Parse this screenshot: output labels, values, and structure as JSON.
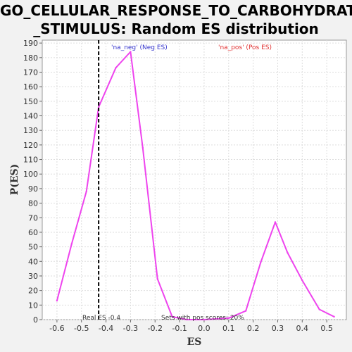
{
  "title_line1": "GO_CELLULAR_RESPONSE_TO_CARBOHYDRATE",
  "title_line2": "_STIMULUS: Random ES distribution",
  "chart_data": {
    "type": "line",
    "xlabel": "ES",
    "ylabel": "P(ES)",
    "xlim": [
      -0.66,
      0.58
    ],
    "ylim": [
      0,
      192
    ],
    "xticks": [
      -0.6,
      -0.5,
      -0.4,
      -0.3,
      -0.2,
      -0.1,
      0.0,
      0.1,
      0.2,
      0.3,
      0.4,
      0.5
    ],
    "yticks": [
      0,
      10,
      20,
      30,
      40,
      50,
      60,
      70,
      80,
      90,
      100,
      110,
      120,
      130,
      140,
      150,
      160,
      170,
      180,
      190
    ],
    "grid": true,
    "series": [
      {
        "color": "#ee44ee",
        "x": [
          -0.6,
          -0.54,
          -0.48,
          -0.43,
          -0.36,
          -0.3,
          -0.25,
          -0.19,
          -0.13,
          -0.07,
          0.0,
          0.1,
          0.17,
          0.23,
          0.29,
          0.34,
          0.4,
          0.47,
          0.53
        ],
        "y": [
          13,
          52,
          88,
          146,
          173,
          184,
          118,
          28,
          2,
          0,
          0,
          1,
          6,
          39,
          67,
          46,
          27,
          7,
          2
        ]
      }
    ],
    "real_es": -0.43,
    "legend_neg": "'na_neg' (Neg ES)",
    "legend_pos": "'na_pos' (Pos ES)",
    "annotation_real_es": "Real ES -0.4",
    "annotation_sets": "Sets with pos scores: 20%"
  },
  "colors": {
    "line": "#ee44ee",
    "neg_legend": "#3333cc",
    "pos_legend": "#e03030"
  }
}
